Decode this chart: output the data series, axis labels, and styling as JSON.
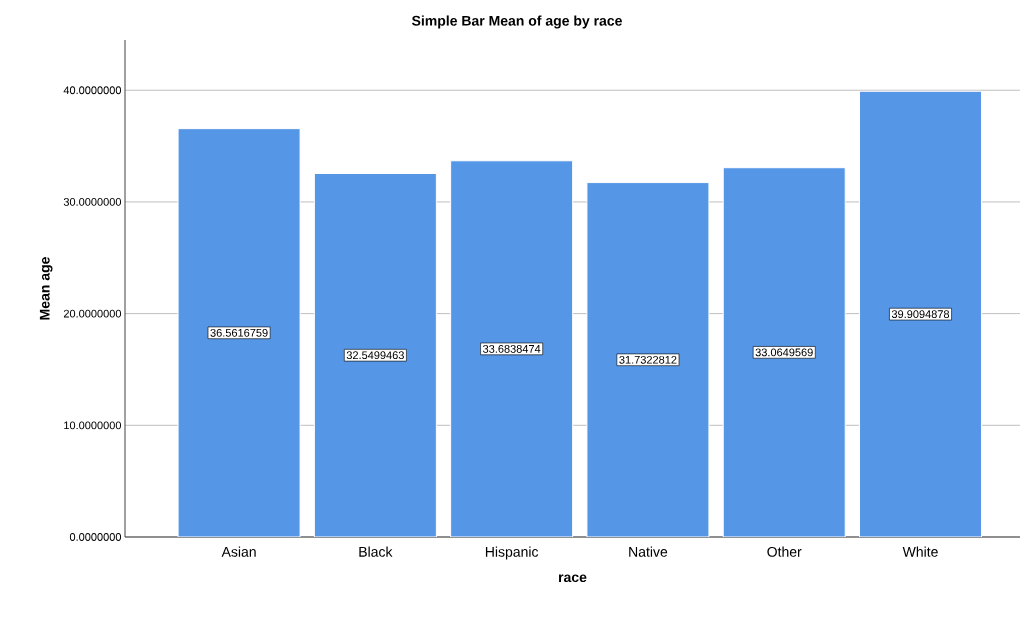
{
  "chart_data": {
    "type": "bar",
    "title": "Simple Bar Mean of age by race",
    "xlabel": "race",
    "ylabel": "Mean age",
    "categories": [
      "Asian",
      "Black",
      "Hispanic",
      "Native",
      "Other",
      "White"
    ],
    "values": [
      36.5616759,
      32.5499463,
      33.6838474,
      31.7322812,
      33.0649569,
      39.9094878
    ],
    "color": "#5596e6",
    "data_labels": true,
    "grid": "y",
    "ylim": [
      0,
      44.5
    ],
    "yticks": [
      {
        "value": 0,
        "label": "0.0000000"
      },
      {
        "value": 10,
        "label": "10.0000000"
      },
      {
        "value": 20,
        "label": "20.0000000"
      },
      {
        "value": 30,
        "label": "30.0000000"
      },
      {
        "value": 40,
        "label": "40.0000000"
      }
    ]
  }
}
